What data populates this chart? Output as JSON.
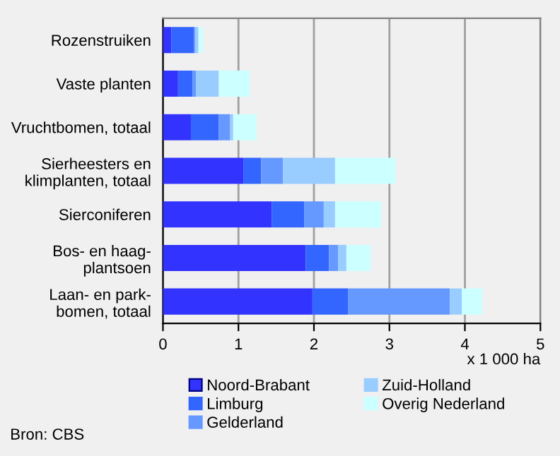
{
  "chart_data": {
    "type": "bar",
    "orientation": "horizontal",
    "stacked": true,
    "categories": [
      "Rozenstruiken",
      "Vaste planten",
      "Vruchtbomen, totaal",
      "Sierheesters en\nklimplanten, totaal",
      "Sierconiferen",
      "Bos- en haag-\nplantsoen",
      "Laan- en park-\nbomen, totaal"
    ],
    "series": [
      {
        "name": "Noord-Brabant",
        "color": "#3333ff",
        "values": [
          0.11,
          0.2,
          0.37,
          1.07,
          1.44,
          1.89,
          1.98
        ]
      },
      {
        "name": "Limburg",
        "color": "#3366ff",
        "values": [
          0.3,
          0.19,
          0.37,
          0.23,
          0.43,
          0.31,
          0.47
        ]
      },
      {
        "name": "Gelderland",
        "color": "#6699ff",
        "values": [
          0.02,
          0.05,
          0.15,
          0.29,
          0.26,
          0.12,
          1.35
        ]
      },
      {
        "name": "Zuid-Holland",
        "color": "#99ccff",
        "values": [
          0.04,
          0.3,
          0.04,
          0.69,
          0.15,
          0.11,
          0.16
        ]
      },
      {
        "name": "Overig Nederland",
        "color": "#ccffff",
        "values": [
          0.06,
          0.41,
          0.31,
          0.8,
          0.61,
          0.32,
          0.27
        ]
      }
    ],
    "xlim": [
      0,
      5
    ],
    "xticks": [
      0,
      1,
      2,
      3,
      4,
      5
    ],
    "xlabel": "x 1 000 ha",
    "grid": "x",
    "legend": "bottom",
    "annotations": [
      "Bron: CBS"
    ]
  }
}
